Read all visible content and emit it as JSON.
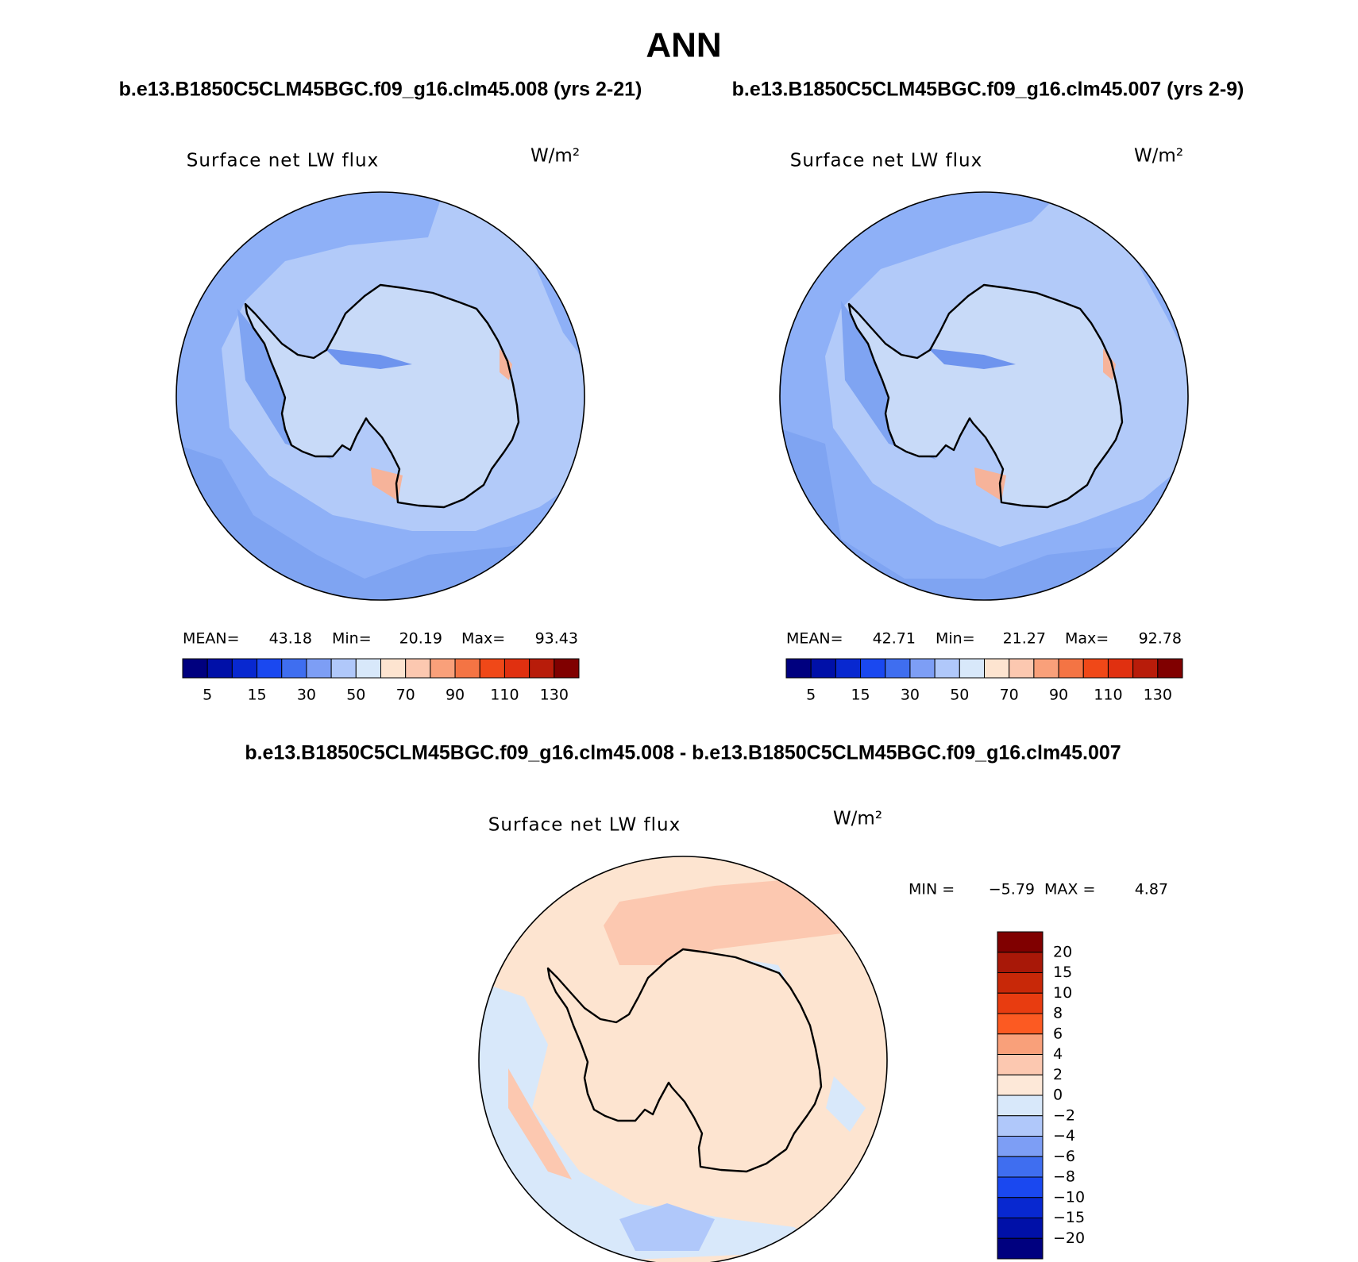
{
  "title": "ANN",
  "panels": [
    {
      "subtitle": "b.e13.B1850C5CLM45BGC.f09_g16.clm45.008 (yrs 2-21)",
      "title": "Surface net LW flux",
      "units": "W/m²",
      "stats": [
        {
          "label": "MEAN=",
          "value": "43.18"
        },
        {
          "label": "Min=",
          "value": "20.19"
        },
        {
          "label": "Max=",
          "value": "93.43"
        }
      ],
      "colorbar": {
        "colors": [
          "#00007f",
          "#0010a8",
          "#0828d0",
          "#1a48f0",
          "#3f6ef0",
          "#7d9ef5",
          "#b0c8fa",
          "#d8e8fa",
          "#fde4d0",
          "#fcc8b0",
          "#f9a07a",
          "#f47444",
          "#f04818",
          "#e03010",
          "#b81c0a",
          "#800000"
        ],
        "labels": [
          "5",
          "15",
          "30",
          "50",
          "70",
          "90",
          "110",
          "130"
        ]
      }
    },
    {
      "subtitle": "b.e13.B1850C5CLM45BGC.f09_g16.clm45.007 (yrs 2-9)",
      "title": "Surface net LW flux",
      "units": "W/m²",
      "stats": [
        {
          "label": "MEAN=",
          "value": "42.71"
        },
        {
          "label": "Min=",
          "value": "21.27"
        },
        {
          "label": "Max=",
          "value": "92.78"
        }
      ],
      "colorbar": {
        "colors": [
          "#00007f",
          "#0010a8",
          "#0828d0",
          "#1a48f0",
          "#3f6ef0",
          "#7d9ef5",
          "#b0c8fa",
          "#d8e8fa",
          "#fde4d0",
          "#fcc8b0",
          "#f9a07a",
          "#f47444",
          "#f04818",
          "#e03010",
          "#b81c0a",
          "#800000"
        ],
        "labels": [
          "5",
          "15",
          "30",
          "50",
          "70",
          "90",
          "110",
          "130"
        ]
      }
    }
  ],
  "difference": {
    "subtitle": "b.e13.B1850C5CLM45BGC.f09_g16.clm45.008 - b.e13.B1850C5CLM45BGC.f09_g16.clm45.007",
    "title": "Surface net LW flux",
    "units": "W/m²",
    "stats": [
      {
        "label": "MIN =",
        "value": "−5.79"
      },
      {
        "label": "MAX =",
        "value": "4.87"
      }
    ],
    "colorbar": {
      "colors": [
        "#800000",
        "#a81808",
        "#c82808",
        "#e83c10",
        "#fc5a22",
        "#f9a07a",
        "#fcc8b0",
        "#fde8d8",
        "#d8e8fa",
        "#b0c8fa",
        "#7d9ef5",
        "#3f6ef0",
        "#1a48f0",
        "#0828d0",
        "#0010a8",
        "#00007f"
      ],
      "labels": [
        "20",
        "15",
        "10",
        "8",
        "6",
        "4",
        "2",
        "0",
        "−2",
        "−4",
        "−6",
        "−8",
        "−10",
        "−15",
        "−20"
      ]
    }
  }
}
